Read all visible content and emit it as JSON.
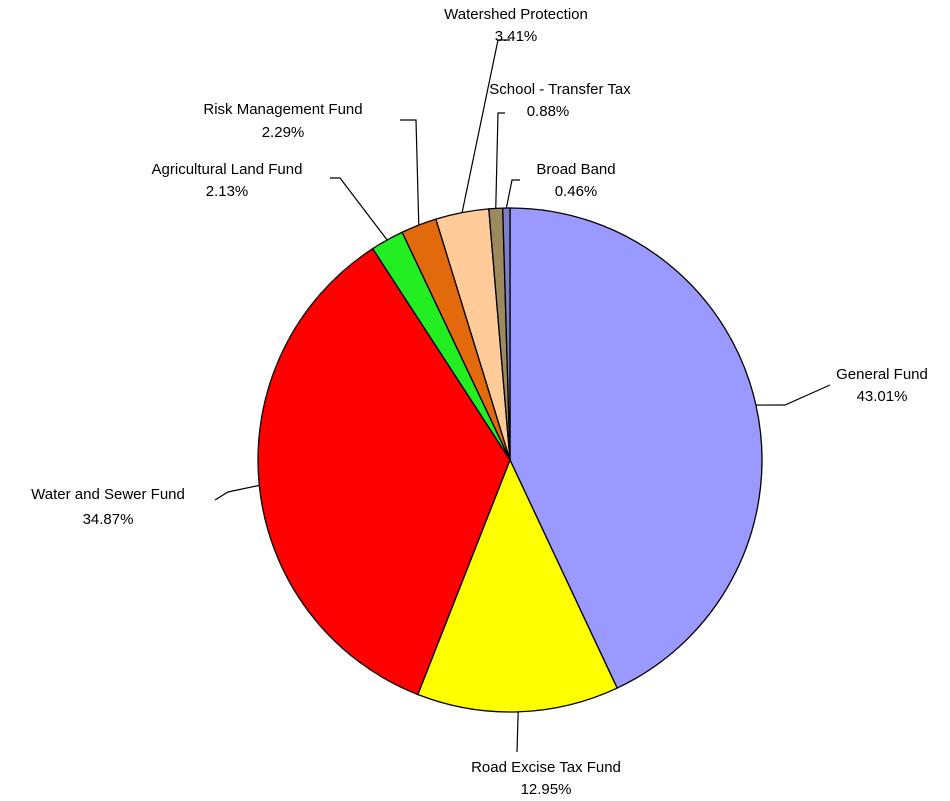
{
  "chart_data": {
    "type": "pie",
    "categories": [
      "General Fund",
      "Road Excise Tax Fund",
      "Water and Sewer Fund",
      "Agricultural Land Fund",
      "Risk Management Fund",
      "Watershed Protection",
      "School - Transfer Tax",
      "Broad Band"
    ],
    "values": [
      43.01,
      12.95,
      34.87,
      2.13,
      2.29,
      3.41,
      0.88,
      0.46
    ],
    "value_labels": [
      "43.01%",
      "12.95%",
      "34.87%",
      "2.13%",
      "2.29%",
      "3.41%",
      "0.88%",
      "0.46%"
    ],
    "colors": [
      "#9999ff",
      "#ffff00",
      "#ff0000",
      "#22ee22",
      "#e3690d",
      "#ffcc99",
      "#9c8a5e",
      "#7f7fc8"
    ]
  }
}
